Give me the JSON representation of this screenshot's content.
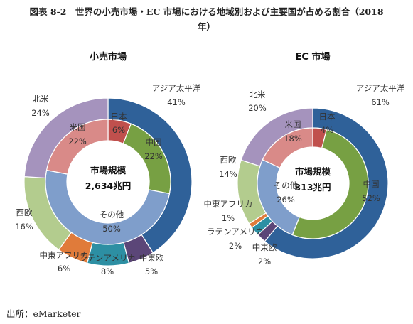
{
  "figure": {
    "title_line1": "図表 8-2　世界の小売市場・EC 市場における地域別および主要国が占める割合（2018",
    "title_line2": "年）",
    "source": "出所：eMarketer"
  },
  "chart_data": [
    {
      "type": "pie",
      "variant": "double-donut",
      "title": "小売市場",
      "center_label": "市場規模",
      "center_value": "2,634兆円",
      "outer_ring": {
        "slices": [
          {
            "label": "アジア太平洋",
            "value": 41,
            "pct_label": "41%",
            "color": "#2f6199"
          },
          {
            "label": "中東欧",
            "value": 5,
            "pct_label": "5%",
            "color": "#5b4678"
          },
          {
            "label": "ラテンアメリカ",
            "value": 8,
            "pct_label": "8%",
            "color": "#2d8fa3"
          },
          {
            "label": "中東アフリカ",
            "value": 6,
            "pct_label": "6%",
            "color": "#e07b3a"
          },
          {
            "label": "西欧",
            "value": 16,
            "pct_label": "16%",
            "color": "#b3cc8e"
          },
          {
            "label": "北米",
            "value": 24,
            "pct_label": "24%",
            "color": "#a593bd"
          }
        ]
      },
      "inner_ring": {
        "slices": [
          {
            "label": "日本",
            "value": 6,
            "pct_label": "6%",
            "color": "#c0504d"
          },
          {
            "label": "中国",
            "value": 22,
            "pct_label": "22%",
            "color": "#77a043"
          },
          {
            "label": "その他",
            "value": 50,
            "pct_label": "50%",
            "color": "#7f9ecb"
          },
          {
            "label": "米国",
            "value": 22,
            "pct_label": "22%",
            "color": "#d98a88"
          }
        ]
      }
    },
    {
      "type": "pie",
      "variant": "double-donut",
      "title": "EC 市場",
      "center_label": "市場規模",
      "center_value": "313兆円",
      "outer_ring": {
        "slices": [
          {
            "label": "アジア太平洋",
            "value": 61,
            "pct_label": "61%",
            "color": "#2f6199"
          },
          {
            "label": "中東欧",
            "value": 2,
            "pct_label": "2%",
            "color": "#5b4678"
          },
          {
            "label": "ラテンアメリカ",
            "value": 2,
            "pct_label": "2%",
            "color": "#2d8fa3"
          },
          {
            "label": "中東アフリカ",
            "value": 1,
            "pct_label": "1%",
            "color": "#e07b3a"
          },
          {
            "label": "西欧",
            "value": 14,
            "pct_label": "14%",
            "color": "#b3cc8e"
          },
          {
            "label": "北米",
            "value": 20,
            "pct_label": "20%",
            "color": "#a593bd"
          }
        ]
      },
      "inner_ring": {
        "slices": [
          {
            "label": "日本",
            "value": 4,
            "pct_label": "4%",
            "color": "#c0504d"
          },
          {
            "label": "中国",
            "value": 52,
            "pct_label": "52%",
            "color": "#77a043"
          },
          {
            "label": "その他",
            "value": 26,
            "pct_label": "26%",
            "color": "#7f9ecb"
          },
          {
            "label": "米国",
            "value": 18,
            "pct_label": "18%",
            "color": "#d98a88"
          }
        ]
      }
    }
  ]
}
